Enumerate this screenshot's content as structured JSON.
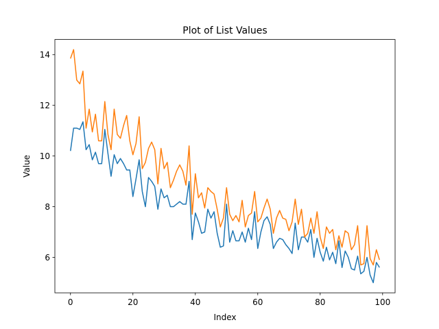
{
  "chart_data": {
    "type": "line",
    "title": "Plot of List Values",
    "xlabel": "Index",
    "ylabel": "Value",
    "xlim": [
      -5,
      104
    ],
    "ylim": [
      4.6,
      14.6
    ],
    "xticks": [
      0,
      20,
      40,
      60,
      80,
      100
    ],
    "yticks": [
      6,
      8,
      10,
      12,
      14
    ],
    "grid": false,
    "legend": "none",
    "x": [
      0,
      1,
      2,
      3,
      4,
      5,
      6,
      7,
      8,
      9,
      10,
      11,
      12,
      13,
      14,
      15,
      16,
      17,
      18,
      19,
      20,
      21,
      22,
      23,
      24,
      25,
      26,
      27,
      28,
      29,
      30,
      31,
      32,
      33,
      34,
      35,
      36,
      37,
      38,
      39,
      40,
      41,
      42,
      43,
      44,
      45,
      46,
      47,
      48,
      49,
      50,
      51,
      52,
      53,
      54,
      55,
      56,
      57,
      58,
      59,
      60,
      61,
      62,
      63,
      64,
      65,
      66,
      67,
      68,
      69,
      70,
      71,
      72,
      73,
      74,
      75,
      76,
      77,
      78,
      79,
      80,
      81,
      82,
      83,
      84,
      85,
      86,
      87,
      88,
      89,
      90,
      91,
      92,
      93,
      94,
      95,
      96,
      97,
      98,
      99
    ],
    "series": [
      {
        "color": "#1f77b4",
        "values": [
          10.2,
          11.1,
          11.1,
          11.05,
          11.35,
          10.25,
          10.45,
          9.85,
          10.15,
          9.7,
          9.7,
          11.05,
          10.1,
          9.2,
          10.05,
          9.7,
          9.9,
          9.7,
          9.45,
          9.45,
          8.4,
          9.1,
          9.85,
          8.6,
          8.0,
          9.15,
          9.0,
          8.8,
          7.9,
          8.7,
          8.35,
          8.45,
          8.0,
          8.0,
          8.1,
          8.2,
          8.1,
          8.1,
          9.0,
          6.7,
          7.75,
          7.4,
          6.95,
          7.0,
          7.9,
          7.55,
          7.8,
          6.95,
          6.4,
          6.45,
          8.1,
          6.6,
          7.05,
          6.65,
          6.65,
          7.0,
          6.6,
          7.15,
          6.7,
          7.8,
          6.35,
          7.0,
          7.45,
          7.6,
          7.3,
          6.35,
          6.6,
          6.75,
          6.7,
          6.5,
          6.35,
          6.15,
          7.35,
          6.3,
          6.8,
          6.8,
          6.6,
          7.1,
          6.0,
          6.75,
          6.2,
          5.85,
          6.4,
          5.9,
          6.2,
          5.75,
          6.65,
          5.6,
          6.25,
          6.0,
          5.55,
          5.5,
          6.05,
          5.35,
          5.45,
          6.0,
          5.3,
          5.0,
          5.8,
          5.6
        ]
      },
      {
        "color": "#ff7f0e",
        "values": [
          13.85,
          14.2,
          13.0,
          12.85,
          13.35,
          11.1,
          11.85,
          10.95,
          11.65,
          10.6,
          10.6,
          12.15,
          10.85,
          10.25,
          11.85,
          10.85,
          10.7,
          11.2,
          11.6,
          10.6,
          10.05,
          10.5,
          11.55,
          9.5,
          9.75,
          10.3,
          10.55,
          10.25,
          8.9,
          10.3,
          9.5,
          9.75,
          8.75,
          9.05,
          9.4,
          9.65,
          9.4,
          8.85,
          10.4,
          7.7,
          9.3,
          8.35,
          8.55,
          7.95,
          8.75,
          8.6,
          8.5,
          7.9,
          7.2,
          7.55,
          8.75,
          7.7,
          7.45,
          7.65,
          7.4,
          8.25,
          7.2,
          7.65,
          7.75,
          8.6,
          7.4,
          7.55,
          7.95,
          8.3,
          7.9,
          6.95,
          7.55,
          7.85,
          7.55,
          7.5,
          7.05,
          7.4,
          8.3,
          7.3,
          7.9,
          6.8,
          6.95,
          7.55,
          6.95,
          7.8,
          6.8,
          6.35,
          7.2,
          6.95,
          7.1,
          6.3,
          6.85,
          6.4,
          7.05,
          6.95,
          6.3,
          6.5,
          7.25,
          5.7,
          5.75,
          7.25,
          5.95,
          5.7,
          6.3,
          5.9
        ]
      }
    ]
  }
}
